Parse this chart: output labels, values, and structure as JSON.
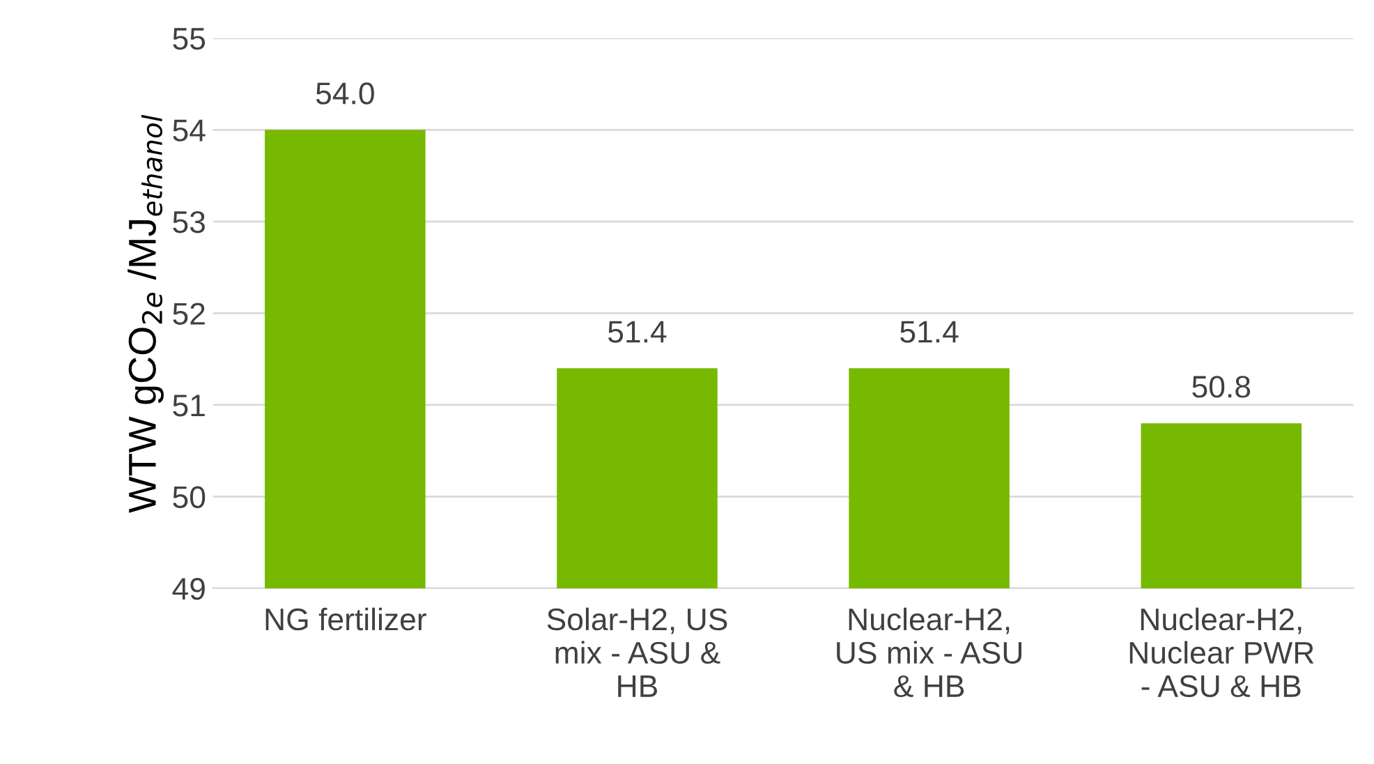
{
  "chart_data": {
    "type": "bar",
    "ylabel": "WTW gCO$_{2e}$ /MJ$_{ethanol}$",
    "categories": [
      "NG fertilizer",
      "Solar-H2, US\nmix - ASU &\nHB",
      "Nuclear-H2,\nUS mix - ASU\n& HB",
      "Nuclear-H2,\nNuclear PWR\n- ASU & HB"
    ],
    "values": [
      54.0,
      51.4,
      51.4,
      50.8
    ],
    "value_labels": [
      "54.0",
      "51.4",
      "51.4",
      "50.8"
    ],
    "color": "#77b900",
    "ylim": [
      49,
      55
    ],
    "yticks": [
      49,
      50,
      51,
      52,
      53,
      54,
      55
    ],
    "grid": "y"
  }
}
